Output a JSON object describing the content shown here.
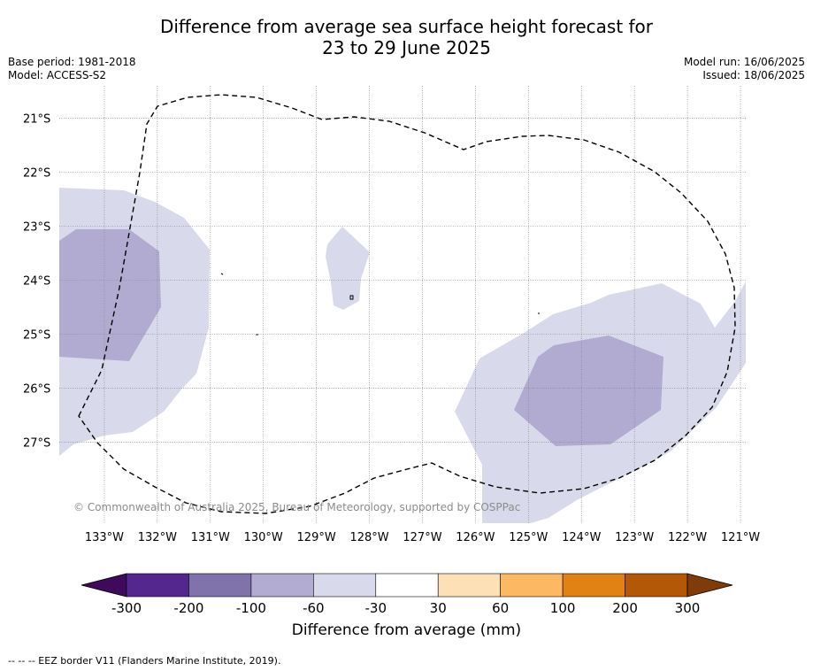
{
  "header": {
    "title_line1": "Difference from average sea surface height forecast for",
    "title_line2": "23 to 29 June 2025",
    "base_period": "Base period: 1981-2018",
    "model": "Model: ACCESS-S2",
    "model_run": "Model run: 16/06/2025",
    "issued": "Issued: 18/06/2025"
  },
  "map": {
    "copyright": "© Commonwealth of Australia 2025, Bureau of Meteorology, supported by COSPPac",
    "lon_labels": [
      "133°W",
      "132°W",
      "131°W",
      "130°W",
      "129°W",
      "128°W",
      "127°W",
      "126°W",
      "125°W",
      "124°W",
      "123°W",
      "122°W",
      "121°W"
    ],
    "lat_labels": [
      "21°S",
      "22°S",
      "23°S",
      "24°S",
      "25°S",
      "26°S",
      "27°S"
    ],
    "gridlines": true
  },
  "chart_data": {
    "type": "heatmap",
    "title": "Difference from average sea surface height forecast for 23 to 29 June 2025",
    "variable": "Difference from average sea surface height",
    "units": "mm",
    "xlabel": "",
    "ylabel": "",
    "xlim": [
      -133.85,
      -120.9
    ],
    "ylim": [
      -28.5,
      -20.4
    ],
    "x_ticks": [
      -133,
      -132,
      -131,
      -130,
      -129,
      -128,
      -127,
      -126,
      -125,
      -124,
      -123,
      -122,
      -121
    ],
    "y_ticks": [
      -21,
      -22,
      -23,
      -24,
      -25,
      -26,
      -27
    ],
    "contour_levels": [
      -300,
      -200,
      -100,
      -60,
      -30,
      30,
      60,
      100,
      200,
      300
    ],
    "colors": [
      "#3f0a5c",
      "#54278f",
      "#8073ac",
      "#b2abd2",
      "#d8daeb",
      "#ffffff",
      "#fee0b6",
      "#fdb863",
      "#e08214",
      "#b35806",
      "#7f3b08"
    ],
    "regions": [
      {
        "level": "-60 to -30",
        "color": "#d8daeb",
        "area": "west, around 134°W–130.5°W, 22.3°S–27.4°S"
      },
      {
        "level": "-100 to -60",
        "color": "#b2abd2",
        "area": "west, around 134°W–131.5°W, 23.1°S–25.6°S"
      },
      {
        "level": "-60 to -30",
        "color": "#d8daeb",
        "area": "central, around 128.8°W–128.2°W, 23°S–24.6°S"
      },
      {
        "level": "-60 to -30",
        "color": "#d8daeb",
        "area": "east, around 126.4°W–120.9°W, 24.1°S–28.5°S"
      },
      {
        "level": "-100 to -60",
        "color": "#b2abd2",
        "area": "east, around 125.3°W–122.5°W, 25.1°S–27.2°S"
      }
    ],
    "legend": "colorbar-bottom"
  },
  "colorbar": {
    "labels": [
      "-300",
      "-200",
      "-100",
      "-60",
      "-30",
      "30",
      "60",
      "100",
      "200",
      "300"
    ],
    "title": "Difference from average (mm)"
  },
  "footer": {
    "eez_note": "-- -- -- EEZ border V11 (Flanders Marine Institute, 2019)."
  }
}
